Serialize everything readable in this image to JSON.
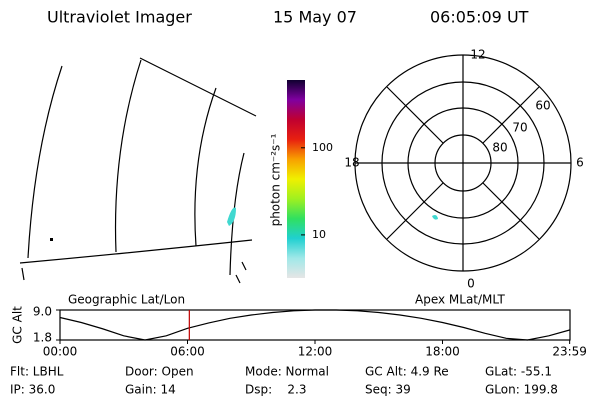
{
  "header": {
    "instrument": "Ultraviolet Imager",
    "date": "15 May 07",
    "time": "06:05:09 UT"
  },
  "colorbar": {
    "label": "photon cm⁻²s⁻¹",
    "log": true,
    "lim": [
      3.2,
      600
    ],
    "ticks": [
      {
        "value": 100,
        "label": "100"
      },
      {
        "value": 10,
        "label": "10"
      }
    ],
    "colors": [
      "#e6e6e6",
      "#a0e8e8",
      "#20d0d0",
      "#30e060",
      "#a0f020",
      "#f0f000",
      "#f8a000",
      "#e82010",
      "#c00030",
      "#8000a0",
      "#100030"
    ]
  },
  "polar": {
    "mlt_labels": [
      "12",
      "18",
      "6",
      "0"
    ],
    "mlat_labels": [
      "60",
      "70",
      "80"
    ]
  },
  "altitude": {
    "ylabel": "GC Alt",
    "left_label": "Geographic Lat/Lon",
    "right_label": "Apex MLat/MLT",
    "xlim": [
      0,
      24
    ],
    "ylim": [
      1.8,
      9.0
    ],
    "yticks": [
      {
        "value": 9,
        "label": "9.0"
      },
      {
        "value": 1.8,
        "label": "1.8"
      }
    ],
    "xticks": [
      {
        "value": 0,
        "label": "00:00"
      },
      {
        "value": 6,
        "label": "06:00"
      },
      {
        "value": 12,
        "label": "12:00"
      },
      {
        "value": 18,
        "label": "18:00"
      },
      {
        "value": 23.983,
        "label": "23:59"
      }
    ],
    "x": [
      0,
      1,
      2,
      3,
      4,
      5,
      6,
      7,
      8,
      9,
      10,
      11,
      12,
      13,
      14,
      15,
      16,
      17,
      18,
      19,
      20,
      21,
      22,
      23,
      23.983
    ],
    "values": [
      7.2,
      6.0,
      4.5,
      2.8,
      1.8,
      2.8,
      4.6,
      5.9,
      7.0,
      7.8,
      8.4,
      8.8,
      9.0,
      9.0,
      8.8,
      8.4,
      7.8,
      7.0,
      6.0,
      4.8,
      3.4,
      2.2,
      1.8,
      2.8,
      4.2
    ],
    "current_time": 6.086
  },
  "footer": [
    [
      "Flt: LBHL",
      "Door: Open",
      "Mode: Normal",
      "GC Alt: 4.9 Re",
      "GLat: -55.1"
    ],
    [
      "IP: 36.0",
      "Gain: 14",
      "Dsp:    2.3",
      "Seq: 39",
      "GLon: 199.8"
    ]
  ]
}
